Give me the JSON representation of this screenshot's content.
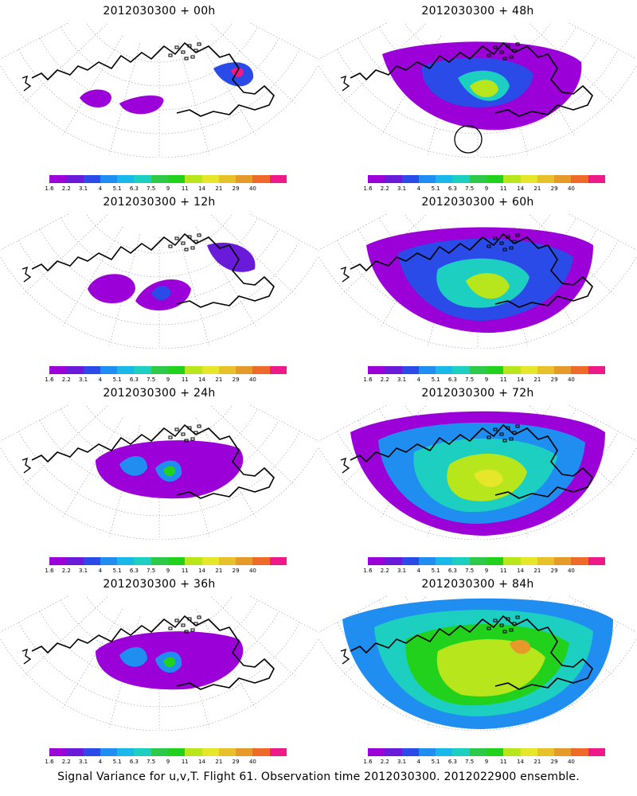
{
  "caption": "Signal Variance for u,v,T. Flight 61. Observation time 2012030300. 2012022900 ensemble.",
  "legend": {
    "ticks": [
      "1.6",
      "2.2",
      "3.1",
      "4",
      "5.1",
      "6.3",
      "7.5",
      "9",
      "11",
      "14",
      "21",
      "29",
      "40"
    ],
    "colors": [
      "#9b00d8",
      "#6a1bd9",
      "#2a4be8",
      "#1f8ef0",
      "#19b8e8",
      "#1ccfc0",
      "#2fc94a",
      "#22d11c",
      "#b8e61c",
      "#e6e62a",
      "#e8c02a",
      "#e69a2a",
      "#ef6a2a",
      "#ee1a8a"
    ]
  },
  "panels": [
    {
      "title": "2012030300  + 00h",
      "level": 1
    },
    {
      "title": "2012030300  + 48h",
      "level": 4
    },
    {
      "title": "2012030300  + 12h",
      "level": 2
    },
    {
      "title": "2012030300  + 60h",
      "level": 5
    },
    {
      "title": "2012030300  + 24h",
      "level": 3
    },
    {
      "title": "2012030300  + 72h",
      "level": 6
    },
    {
      "title": "2012030300  + 36h",
      "level": 3
    },
    {
      "title": "2012030300  + 84h",
      "level": 7
    }
  ]
}
